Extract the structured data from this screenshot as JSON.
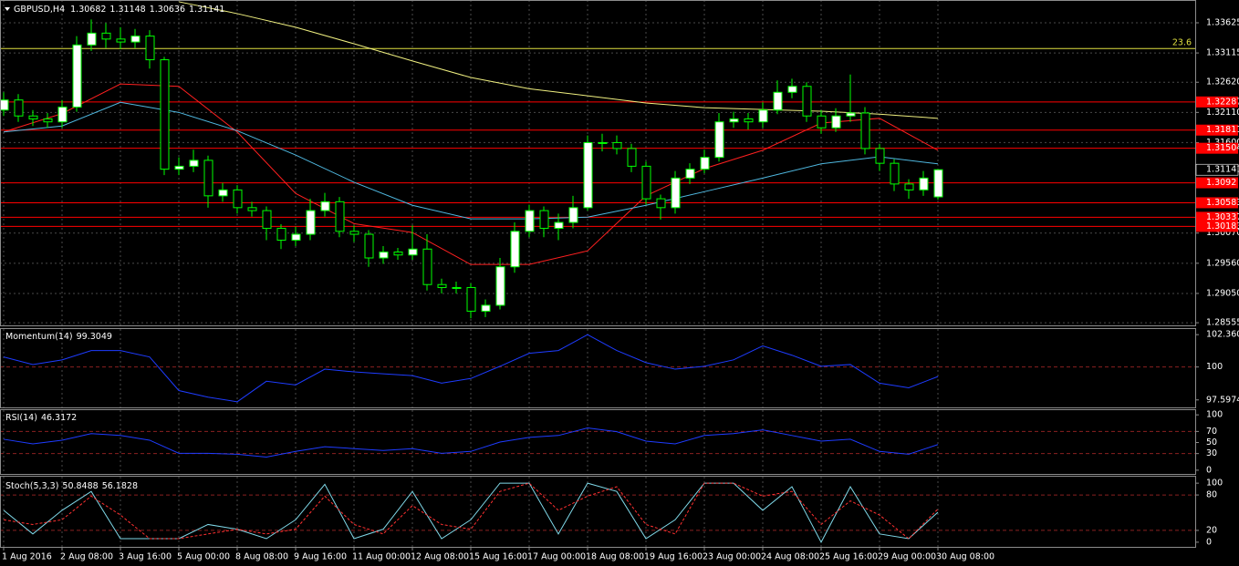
{
  "chart_data": [
    {
      "type": "candlestick",
      "title": "GBPUSD,H4",
      "open": [
        1.3215,
        1.3232,
        1.3205,
        1.32,
        1.3195,
        1.322,
        1.3325,
        1.3345,
        1.3335,
        1.333,
        1.334,
        1.33,
        1.3115,
        1.312,
        1.313,
        1.307,
        1.308,
        1.305,
        1.3045,
        1.3015,
        1.2995,
        1.3005,
        1.3045,
        1.306,
        1.301,
        1.3005,
        1.2965,
        1.2975,
        1.297,
        1.298,
        1.292,
        1.2915,
        1.2915,
        1.2875,
        1.2885,
        1.295,
        1.301,
        1.3045,
        1.3015,
        1.3025,
        1.305,
        1.316,
        1.316,
        1.315,
        1.312,
        1.3065,
        1.305,
        1.31,
        1.3115,
        1.3135,
        1.3195,
        1.32,
        1.3195,
        1.3215,
        1.3245,
        1.3255,
        1.3205,
        1.3185,
        1.3205,
        1.321,
        1.315,
        1.3125,
        1.309,
        1.308,
        1.30682
      ],
      "high": [
        1.3245,
        1.3242,
        1.3215,
        1.321,
        1.3232,
        1.334,
        1.3368,
        1.3362,
        1.3355,
        1.3352,
        1.335,
        1.3305,
        1.3135,
        1.3148,
        1.3138,
        1.3092,
        1.3088,
        1.306,
        1.3052,
        1.3022,
        1.3018,
        1.3065,
        1.3075,
        1.3068,
        1.302,
        1.3012,
        1.2985,
        1.2982,
        1.302,
        1.3005,
        1.293,
        1.2925,
        1.2922,
        1.2895,
        1.2965,
        1.3025,
        1.3055,
        1.3052,
        1.304,
        1.307,
        1.3172,
        1.3175,
        1.3172,
        1.3158,
        1.3128,
        1.3072,
        1.3112,
        1.3125,
        1.3148,
        1.321,
        1.3212,
        1.321,
        1.3228,
        1.3265,
        1.3268,
        1.3262,
        1.3215,
        1.3218,
        1.3275,
        1.322,
        1.3158,
        1.3132,
        1.3098,
        1.3112,
        1.31148
      ],
      "low": [
        1.3205,
        1.3195,
        1.3188,
        1.3185,
        1.3185,
        1.3212,
        1.3315,
        1.332,
        1.3318,
        1.332,
        1.3285,
        1.3105,
        1.3105,
        1.311,
        1.305,
        1.306,
        1.304,
        1.3035,
        1.2995,
        1.298,
        1.2985,
        1.2995,
        1.3035,
        1.3,
        1.2992,
        1.295,
        1.2955,
        1.2962,
        1.2962,
        1.291,
        1.2905,
        1.2905,
        1.2863,
        1.2865,
        1.2878,
        1.294,
        1.3,
        1.3,
        1.2995,
        1.3015,
        1.3045,
        1.3145,
        1.314,
        1.311,
        1.3055,
        1.303,
        1.304,
        1.309,
        1.3108,
        1.3128,
        1.3185,
        1.3182,
        1.3185,
        1.3208,
        1.3235,
        1.3195,
        1.3175,
        1.3178,
        1.3195,
        1.314,
        1.3112,
        1.3078,
        1.3065,
        1.307,
        1.30636
      ],
      "close": [
        1.3232,
        1.3205,
        1.32,
        1.3195,
        1.322,
        1.3325,
        1.3345,
        1.3335,
        1.333,
        1.334,
        1.33,
        1.3115,
        1.312,
        1.313,
        1.307,
        1.308,
        1.305,
        1.3045,
        1.3015,
        1.2995,
        1.3005,
        1.3045,
        1.306,
        1.301,
        1.3005,
        1.2965,
        1.2975,
        1.297,
        1.298,
        1.292,
        1.2915,
        1.2915,
        1.2875,
        1.2885,
        1.295,
        1.301,
        1.3045,
        1.3015,
        1.3025,
        1.305,
        1.316,
        1.316,
        1.315,
        1.312,
        1.3065,
        1.305,
        1.31,
        1.3115,
        1.3135,
        1.3195,
        1.32,
        1.3195,
        1.3215,
        1.3245,
        1.3255,
        1.3205,
        1.3185,
        1.3205,
        1.321,
        1.315,
        1.3125,
        1.309,
        1.308,
        1.31,
        1.31141
      ],
      "bull_color": "#ffffff",
      "bear_color": "#000000",
      "wick_color": "#00ff00",
      "series": [
        {
          "color": "#ff2020",
          "x": [
            0,
            4,
            8,
            12,
            16,
            20,
            24,
            28,
            32,
            36,
            40,
            44,
            48,
            52,
            56,
            60,
            64
          ],
          "values": [
            1.3178,
            1.3209,
            1.3259,
            1.3255,
            1.3178,
            1.3074,
            1.3023,
            1.3008,
            1.2954,
            1.2954,
            1.2977,
            1.307,
            1.3116,
            1.3147,
            1.3193,
            1.3201,
            1.3147
          ]
        },
        {
          "color": "#4fb8e0",
          "x": [
            0,
            4,
            8,
            12,
            16,
            20,
            24,
            28,
            32,
            36,
            40,
            44,
            48,
            52,
            56,
            60,
            64
          ],
          "values": [
            1.3178,
            1.3188,
            1.3228,
            1.3211,
            1.318,
            1.3139,
            1.3093,
            1.3054,
            1.3031,
            1.3031,
            1.3034,
            1.3054,
            1.3077,
            1.31,
            1.3124,
            1.3136,
            1.3124
          ]
        },
        {
          "color": "#f0f080",
          "x": [
            0,
            4,
            8,
            12,
            16,
            20,
            24,
            28,
            32,
            36,
            40,
            44,
            48,
            52,
            56,
            60,
            64
          ],
          "values": [
            null,
            null,
            null,
            1.3398,
            1.3378,
            1.3355,
            1.3327,
            1.3298,
            1.327,
            1.3251,
            1.3239,
            1.3227,
            1.3219,
            1.3216,
            1.3213,
            1.3208,
            1.3201
          ]
        }
      ],
      "levels": {
        "color": "#ff0000",
        "values": [
          1.32287,
          1.31811,
          1.31504,
          1.3092,
          1.30583,
          1.30337,
          1.30183
        ]
      },
      "fib_levels": [
        {
          "value": 1.3319,
          "label": "23.6"
        }
      ],
      "fib_color": "#e0e040",
      "ylim": [
        1.2851,
        1.3401
      ],
      "yticks": [
        1.33625,
        1.33115,
        {
          "value": 1.3262,
          "label": "1.32620"
        },
        {
          "value": 1.3211,
          "label": "1.32110"
        },
        {
          "value": 1.316,
          "label": "1.31600"
        },
        {
          "value": 1.3007,
          "label": "1.30070"
        },
        {
          "value": 1.2956,
          "label": "1.29560"
        },
        {
          "value": 1.2905,
          "label": "1.29050"
        },
        1.28555
      ],
      "xticks": [
        {
          "value": 0,
          "label": "1 Aug 2016"
        },
        {
          "value": 4,
          "label": "2 Aug 08:00"
        },
        {
          "value": 8,
          "label": "3 Aug 16:00"
        },
        {
          "value": 12,
          "label": "5 Aug 00:00"
        },
        {
          "value": 16,
          "label": "8 Aug 08:00"
        },
        {
          "value": 20,
          "label": "9 Aug 16:00"
        },
        {
          "value": 24,
          "label": "11 Aug 00:00"
        },
        {
          "value": 28,
          "label": "12 Aug 08:00"
        },
        {
          "value": 32,
          "label": "15 Aug 16:00"
        },
        {
          "value": 36,
          "label": "17 Aug 00:00"
        },
        {
          "value": 40,
          "label": "18 Aug 08:00"
        },
        {
          "value": 44,
          "label": "19 Aug 16:00"
        },
        {
          "value": 48,
          "label": "23 Aug 00:00"
        },
        {
          "value": 52,
          "label": "24 Aug 08:00"
        },
        {
          "value": 56,
          "label": "25 Aug 16:00"
        },
        {
          "value": 60,
          "label": "29 Aug 00:00"
        },
        {
          "value": 64,
          "label": "30 Aug 08:00"
        }
      ],
      "grid": true
    },
    {
      "type": "line",
      "title": "Momentum(14)",
      "x": [
        0,
        2,
        4,
        6,
        8,
        10,
        12,
        14,
        16,
        18,
        20,
        22,
        24,
        26,
        28,
        30,
        32,
        34,
        36,
        38,
        40,
        42,
        44,
        46,
        48,
        50,
        52,
        54,
        56,
        58,
        60,
        62,
        64
      ],
      "series": [
        {
          "color": "#1e3cff",
          "values": [
            100.73,
            100.18,
            100.52,
            101.2,
            101.2,
            100.73,
            98.28,
            97.8,
            97.46,
            98.96,
            98.69,
            99.84,
            99.64,
            99.5,
            99.37,
            98.82,
            99.16,
            100.05,
            101.0,
            101.2,
            102.36,
            101.2,
            100.32,
            99.84,
            100.05,
            100.52,
            101.54,
            100.86,
            100.05,
            100.18,
            98.82,
            98.48,
            99.3049
          ]
        }
      ],
      "ylim": [
        97.05,
        102.77
      ],
      "yticks": [
        102.3607,
        100,
        97.5974
      ],
      "level_lines": [
        100
      ],
      "level_color": "#8a2020"
    },
    {
      "type": "line",
      "title": "RSI(14)",
      "x": [
        0,
        2,
        4,
        6,
        8,
        10,
        12,
        14,
        16,
        18,
        20,
        22,
        24,
        26,
        28,
        30,
        32,
        34,
        36,
        38,
        40,
        42,
        44,
        46,
        48,
        50,
        52,
        54,
        56,
        58,
        60,
        62,
        64
      ],
      "series": [
        {
          "color": "#1e3cff",
          "values": [
            55.9,
            47.5,
            54.2,
            66.1,
            62.7,
            54.2,
            30.5,
            30.5,
            28.8,
            23.7,
            33.9,
            42.4,
            39.0,
            35.6,
            39.0,
            30.5,
            33.9,
            50.8,
            59.3,
            62.7,
            76.3,
            69.5,
            52.5,
            47.5,
            62.7,
            66.1,
            72.9,
            62.7,
            52.5,
            55.9,
            33.9,
            28.8,
            46.3172
          ]
        }
      ],
      "ylim": [
        -6.8,
        108.5
      ],
      "yticks": [
        100,
        70,
        50,
        30,
        0
      ],
      "level_lines": [
        70,
        30
      ],
      "level_color": "#8a2020"
    },
    {
      "type": "line",
      "title": "Stoch(5,3,3)",
      "x": [
        0,
        2,
        4,
        6,
        8,
        10,
        12,
        14,
        16,
        18,
        20,
        22,
        24,
        26,
        28,
        30,
        32,
        34,
        36,
        38,
        40,
        42,
        44,
        46,
        48,
        50,
        52,
        54,
        56,
        58,
        60,
        62,
        64
      ],
      "series": [
        {
          "color": "#7fd8e8",
          "values": [
            54,
            14,
            54,
            86,
            6,
            6,
            6,
            30,
            22,
            6,
            38,
            98,
            6,
            22,
            86,
            6,
            38,
            100,
            100,
            14,
            100,
            86,
            6,
            38,
            100,
            100,
            54,
            94,
            0,
            94,
            14,
            6,
            50.8488
          ]
        },
        {
          "color": "#ff3030",
          "dashed": true,
          "values": [
            38,
            30,
            38,
            78,
            46,
            6,
            6,
            14,
            22,
            14,
            22,
            78,
            30,
            14,
            62,
            30,
            22,
            86,
            100,
            54,
            78,
            94,
            30,
            14,
            100,
            100,
            78,
            86,
            30,
            70,
            46,
            6,
            56.1828
          ]
        }
      ],
      "ylim": [
        -7.9,
        111
      ],
      "yticks": [
        100,
        80,
        20,
        0
      ],
      "level_lines": [
        80,
        20
      ],
      "level_color": "#8a2020"
    }
  ]
}
